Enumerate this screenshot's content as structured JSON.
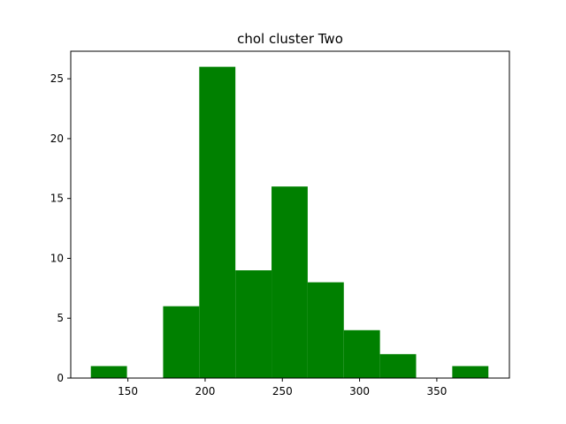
{
  "chart_data": {
    "type": "bar",
    "title": "chol cluster Two",
    "xlabel": "",
    "ylabel": "",
    "xlim": [
      113,
      397
    ],
    "ylim": [
      0,
      27.3
    ],
    "xticks": [
      150,
      200,
      250,
      300,
      350
    ],
    "yticks": [
      0,
      5,
      10,
      15,
      20,
      25
    ],
    "bar_color": "#008000",
    "grid": false,
    "bins": [
      {
        "x0": 126,
        "x1": 149.4,
        "count": 1
      },
      {
        "x0": 149.4,
        "x1": 172.8,
        "count": 0
      },
      {
        "x0": 172.8,
        "x1": 196.2,
        "count": 6
      },
      {
        "x0": 196.2,
        "x1": 219.6,
        "count": 26
      },
      {
        "x0": 219.6,
        "x1": 243.0,
        "count": 9
      },
      {
        "x0": 243.0,
        "x1": 266.4,
        "count": 16
      },
      {
        "x0": 266.4,
        "x1": 289.8,
        "count": 8
      },
      {
        "x0": 289.8,
        "x1": 313.2,
        "count": 4
      },
      {
        "x0": 313.2,
        "x1": 336.6,
        "count": 2
      },
      {
        "x0": 336.6,
        "x1": 360.0,
        "count": 0
      },
      {
        "x0": 360.0,
        "x1": 383.4,
        "count": 1
      }
    ]
  }
}
